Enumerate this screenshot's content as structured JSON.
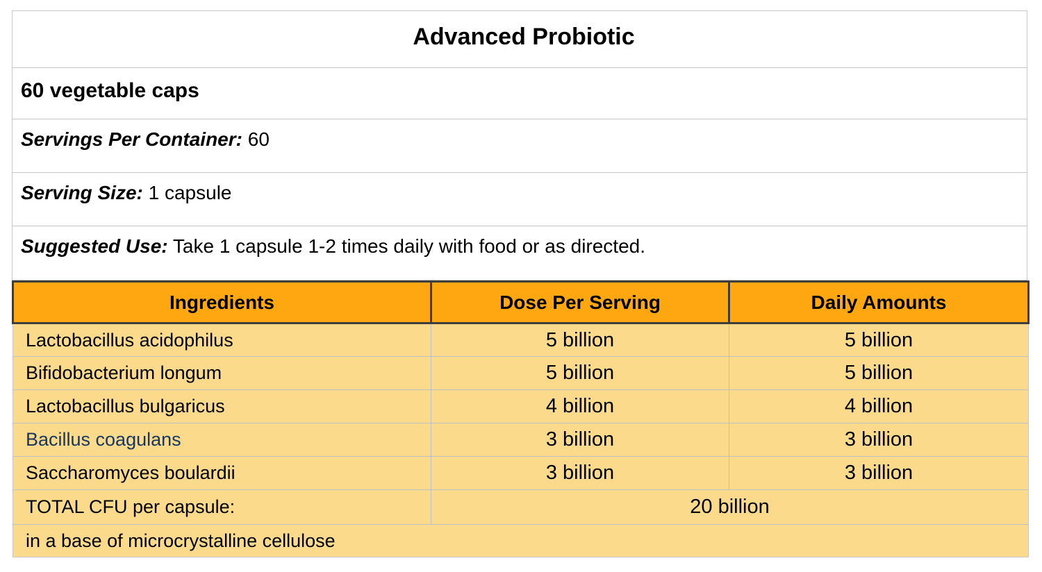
{
  "colors": {
    "header_bg": "#FEA711",
    "row_bg": "#FCDA8C",
    "highlight": "#17375E"
  },
  "title": "Advanced Probiotic",
  "subtitle": "60 vegetable caps",
  "info_rows": [
    {
      "label": "Servings Per Container:",
      "value": "60"
    },
    {
      "label": "Serving Size:",
      "value": "1 capsule"
    },
    {
      "label": "Suggested Use:",
      "value": "Take 1 capsule 1-2 times daily with food or as directed."
    }
  ],
  "table": {
    "columns": [
      "Ingredients",
      "Dose Per Serving",
      "Daily Amounts"
    ],
    "rows": [
      {
        "ingredient": "Lactobacillus acidophilus",
        "dose": "5 billion",
        "daily": "5 billion"
      },
      {
        "ingredient": "Bifidobacterium longum",
        "dose": "5 billion",
        "daily": "5 billion"
      },
      {
        "ingredient": "Lactobacillus bulgaricus",
        "dose": "4 billion",
        "daily": "4 billion"
      },
      {
        "ingredient": "Bacillus coagulans",
        "dose": "3 billion",
        "daily": "3 billion"
      },
      {
        "ingredient": "Saccharomyces boulardii",
        "dose": "3 billion",
        "daily": "3 billion"
      }
    ],
    "total_row": {
      "label": "TOTAL CFU per capsule:",
      "value": "20 billion"
    },
    "footer_row": "in a base of microcrystalline cellulose"
  }
}
